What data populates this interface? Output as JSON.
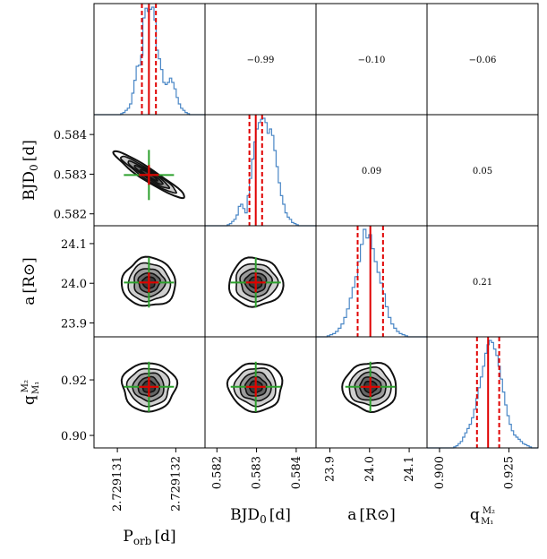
{
  "chart_data": {
    "type": "corner",
    "parameters": [
      {
        "name": "P_orb",
        "axis_label": "P",
        "axis_label_sub": "orb",
        "axis_label_unit": "[d]",
        "range": [
          2.7291306,
          2.7291325
        ],
        "ticks": [
          2.729131,
          2.729132
        ],
        "tick_labels": [
          "2.729131",
          "2.729132"
        ],
        "median": 2.72913154,
        "lower": 2.72913142,
        "upper": 2.72913166
      },
      {
        "name": "BJD_0",
        "axis_label": "BJD",
        "axis_label_sub": "0",
        "axis_label_unit": "[d]",
        "range": [
          0.5817,
          0.5845
        ],
        "ticks": [
          0.582,
          0.583,
          0.584
        ],
        "tick_labels": [
          "0.582",
          "0.583",
          "0.584"
        ],
        "median": 0.58298,
        "lower": 0.58282,
        "upper": 0.58314
      },
      {
        "name": "a",
        "axis_label": "a",
        "axis_label_sub": "",
        "axis_label_unit": "[R⊙]",
        "range": [
          23.865,
          24.145
        ],
        "ticks": [
          23.9,
          24.0,
          24.1
        ],
        "tick_labels": [
          "23.9",
          "24.0",
          "24.1"
        ],
        "median": 24.002,
        "lower": 23.97,
        "upper": 24.034
      },
      {
        "name": "q",
        "axis_label": "q",
        "axis_label_frac_num": "M₂",
        "axis_label_frac_den": "M₁",
        "axis_label_unit": "",
        "range": [
          0.8955,
          0.9355
        ],
        "ticks": [
          0.9,
          0.92
        ],
        "tick_labels": [
          "0.90",
          "0.92"
        ],
        "xticks": [
          0.9,
          0.925
        ],
        "xtick_labels": [
          "0.900",
          "0.925"
        ],
        "median": 0.9175,
        "lower": 0.9135,
        "upper": 0.9215
      }
    ],
    "correlations": [
      {
        "row": 0,
        "col": 1,
        "value": "−0.99"
      },
      {
        "row": 0,
        "col": 2,
        "value": "−0.10"
      },
      {
        "row": 0,
        "col": 3,
        "value": "−0.06"
      },
      {
        "row": 1,
        "col": 2,
        "value": "0.09"
      },
      {
        "row": 1,
        "col": 3,
        "value": "0.05"
      },
      {
        "row": 2,
        "col": 3,
        "value": "0.21"
      }
    ],
    "histograms": [
      [
        0,
        0,
        0,
        0,
        0,
        0,
        0,
        0,
        0,
        0,
        0,
        0,
        1,
        2,
        4,
        6,
        10,
        20,
        32,
        45,
        46,
        55,
        90,
        99,
        96,
        98,
        100,
        88,
        60,
        52,
        42,
        30,
        28,
        30,
        34,
        30,
        24,
        16,
        10,
        6,
        4,
        2,
        1,
        0,
        0,
        0,
        0,
        0,
        0,
        0
      ],
      [
        0,
        0,
        0,
        0,
        0,
        0,
        0,
        0,
        0,
        0,
        1,
        2,
        4,
        6,
        10,
        18,
        20,
        16,
        12,
        28,
        44,
        62,
        78,
        90,
        96,
        99,
        100,
        96,
        86,
        90,
        84,
        70,
        55,
        40,
        28,
        20,
        12,
        8,
        6,
        3,
        2,
        1,
        0,
        0,
        0,
        0,
        0,
        0,
        0,
        0
      ],
      [
        0,
        0,
        0,
        0,
        1,
        2,
        3,
        5,
        8,
        12,
        18,
        26,
        36,
        46,
        56,
        70,
        86,
        100,
        92,
        95,
        82,
        70,
        60,
        50,
        40,
        28,
        18,
        12,
        8,
        5,
        3,
        2,
        1,
        0,
        0,
        0,
        0,
        0,
        0,
        0
      ],
      [
        0,
        0,
        0,
        0,
        0,
        0,
        0,
        0,
        0,
        0,
        0,
        0,
        1,
        2,
        4,
        6,
        10,
        14,
        18,
        22,
        28,
        36,
        46,
        56,
        66,
        76,
        88,
        96,
        100,
        98,
        92,
        86,
        76,
        64,
        52,
        40,
        30,
        22,
        16,
        12,
        10,
        8,
        6,
        4,
        3,
        2,
        1,
        0,
        0,
        0
      ]
    ],
    "colors": {
      "histogram": "#4a87c6",
      "median_line": "#e00000",
      "quantile_line": "#e00000",
      "contour": "#111111",
      "crosshair": "#2ca02c",
      "marker": "#e00000"
    },
    "quantiles": [
      0.16,
      0.5,
      0.84
    ]
  }
}
